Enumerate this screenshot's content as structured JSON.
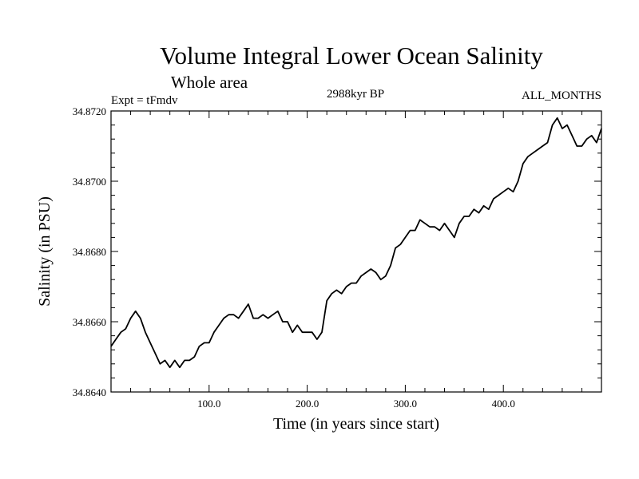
{
  "chart_data": {
    "type": "line",
    "title": "Volume Integral Lower Ocean Salinity",
    "subtitle": "Whole area",
    "experiment_label": "Expt = tFmdv",
    "period_label": "2988kyr BP",
    "months_label": "ALL_MONTHS",
    "xlabel": "Time (in years since start)",
    "ylabel": "Salinity (in PSU)",
    "xlim": [
      0,
      500
    ],
    "ylim": [
      34.864,
      34.872
    ],
    "xticks": [
      100,
      200,
      300,
      400
    ],
    "xtick_labels": [
      "100.0",
      "200.0",
      "300.0",
      "400.0"
    ],
    "yticks": [
      34.864,
      34.866,
      34.868,
      34.87,
      34.872
    ],
    "ytick_labels": [
      "34.8640",
      "34.8660",
      "34.8680",
      "34.8700",
      "34.8720"
    ],
    "series": [
      {
        "name": "Salinity",
        "x": [
          0,
          5,
          10,
          15,
          20,
          25,
          30,
          35,
          40,
          45,
          50,
          55,
          60,
          65,
          70,
          75,
          80,
          85,
          90,
          95,
          100,
          105,
          110,
          115,
          120,
          125,
          130,
          135,
          140,
          145,
          150,
          155,
          160,
          165,
          170,
          175,
          180,
          185,
          190,
          195,
          200,
          205,
          210,
          215,
          220,
          225,
          230,
          235,
          240,
          245,
          250,
          255,
          260,
          265,
          270,
          275,
          280,
          285,
          290,
          295,
          300,
          305,
          310,
          315,
          320,
          325,
          330,
          335,
          340,
          345,
          350,
          355,
          360,
          365,
          370,
          375,
          380,
          385,
          390,
          395,
          400,
          405,
          410,
          415,
          420,
          425,
          430,
          435,
          440,
          445,
          450,
          455,
          460,
          465,
          470,
          475,
          480,
          485,
          490,
          495,
          500
        ],
        "values": [
          34.8653,
          34.8655,
          34.8657,
          34.8658,
          34.8661,
          34.8663,
          34.8661,
          34.8657,
          34.8654,
          34.8651,
          34.8648,
          34.8649,
          34.8647,
          34.8649,
          34.8647,
          34.8649,
          34.8649,
          34.865,
          34.8653,
          34.8654,
          34.8654,
          34.8657,
          34.8659,
          34.8661,
          34.8662,
          34.8662,
          34.8661,
          34.8663,
          34.8665,
          34.8661,
          34.8661,
          34.8662,
          34.8661,
          34.8662,
          34.8663,
          34.866,
          34.866,
          34.8657,
          34.8659,
          34.8657,
          34.8657,
          34.8657,
          34.8655,
          34.8657,
          34.8666,
          34.8668,
          34.8669,
          34.8668,
          34.867,
          34.8671,
          34.8671,
          34.8673,
          34.8674,
          34.8675,
          34.8674,
          34.8672,
          34.8673,
          34.8676,
          34.8681,
          34.8682,
          34.8684,
          34.8686,
          34.8686,
          34.8689,
          34.8688,
          34.8687,
          34.8687,
          34.8686,
          34.8688,
          34.8686,
          34.8684,
          34.8688,
          34.869,
          34.869,
          34.8692,
          34.8691,
          34.8693,
          34.8692,
          34.8695,
          34.8696,
          34.8697,
          34.8698,
          34.8697,
          34.87,
          34.8705,
          34.8707,
          34.8708,
          34.8709,
          34.871,
          34.8711,
          34.8716,
          34.8718,
          34.8715,
          34.8716,
          34.8713,
          34.871,
          34.871,
          34.8712,
          34.8713,
          34.8711,
          34.8715
        ]
      }
    ]
  }
}
